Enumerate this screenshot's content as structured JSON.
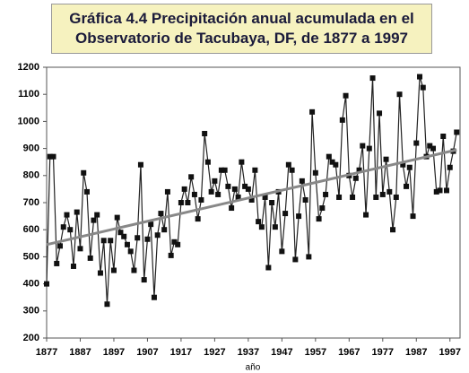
{
  "chart_data": {
    "type": "line",
    "title": "Gráfica 4.4 Precipitación anual acumulada en el Observatorio de Tacubaya, DF, de 1877 a 1997",
    "x_label": "año",
    "x": [
      1877,
      1878,
      1879,
      1880,
      1881,
      1882,
      1883,
      1884,
      1885,
      1886,
      1887,
      1888,
      1889,
      1890,
      1891,
      1892,
      1893,
      1894,
      1895,
      1896,
      1897,
      1898,
      1899,
      1900,
      1901,
      1902,
      1903,
      1904,
      1905,
      1906,
      1907,
      1908,
      1909,
      1910,
      1911,
      1912,
      1913,
      1914,
      1915,
      1916,
      1917,
      1918,
      1919,
      1920,
      1921,
      1922,
      1923,
      1924,
      1925,
      1926,
      1927,
      1928,
      1929,
      1930,
      1931,
      1932,
      1933,
      1934,
      1935,
      1936,
      1937,
      1938,
      1939,
      1940,
      1941,
      1942,
      1943,
      1944,
      1945,
      1946,
      1947,
      1948,
      1949,
      1950,
      1951,
      1952,
      1953,
      1954,
      1955,
      1956,
      1957,
      1958,
      1959,
      1960,
      1961,
      1962,
      1963,
      1964,
      1965,
      1966,
      1967,
      1968,
      1969,
      1970,
      1971,
      1972,
      1973,
      1974,
      1975,
      1976,
      1977,
      1978,
      1979,
      1980,
      1981,
      1982,
      1983,
      1984,
      1985,
      1986,
      1987,
      1988,
      1989,
      1990,
      1991,
      1992,
      1993,
      1994,
      1995,
      1996,
      1997,
      1998,
      1999
    ],
    "series": [
      {
        "color": "#222222",
        "values": [
          400,
          870,
          870,
          475,
          540,
          610,
          655,
          600,
          465,
          665,
          530,
          810,
          740,
          495,
          635,
          655,
          440,
          560,
          325,
          560,
          450,
          645,
          590,
          575,
          545,
          520,
          450,
          570,
          840,
          415,
          565,
          620,
          350,
          580,
          660,
          600,
          740,
          505,
          555,
          545,
          700,
          750,
          700,
          795,
          730,
          640,
          710,
          955,
          850,
          740,
          780,
          730,
          820,
          820,
          760,
          680,
          750,
          720,
          850,
          760,
          750,
          710,
          820,
          630,
          610,
          720,
          460,
          700,
          610,
          740,
          520,
          660,
          840,
          820,
          490,
          650,
          780,
          710,
          500,
          1035,
          810,
          640,
          680,
          730,
          870,
          850,
          840,
          720,
          1005,
          1095,
          800,
          720,
          790,
          820,
          910,
          655,
          900,
          1160,
          720,
          1030,
          730,
          860,
          740,
          600,
          720,
          1100,
          840,
          760,
          830,
          650,
          920,
          1165,
          1125,
          870,
          910,
          900,
          740,
          745,
          945,
          745,
          830,
          890,
          960
        ]
      }
    ],
    "trend": {
      "color": "#888888",
      "x": [
        1877,
        1999
      ],
      "values": [
        545,
        895
      ]
    },
    "xlim": [
      1877,
      2000
    ],
    "xticks": [
      1877,
      1887,
      1897,
      1907,
      1917,
      1927,
      1937,
      1947,
      1957,
      1967,
      1977,
      1987,
      1997
    ],
    "ylim": [
      200,
      1200
    ],
    "yticks": [
      200,
      300,
      400,
      500,
      600,
      700,
      800,
      900,
      1000,
      1100,
      1200
    ]
  }
}
